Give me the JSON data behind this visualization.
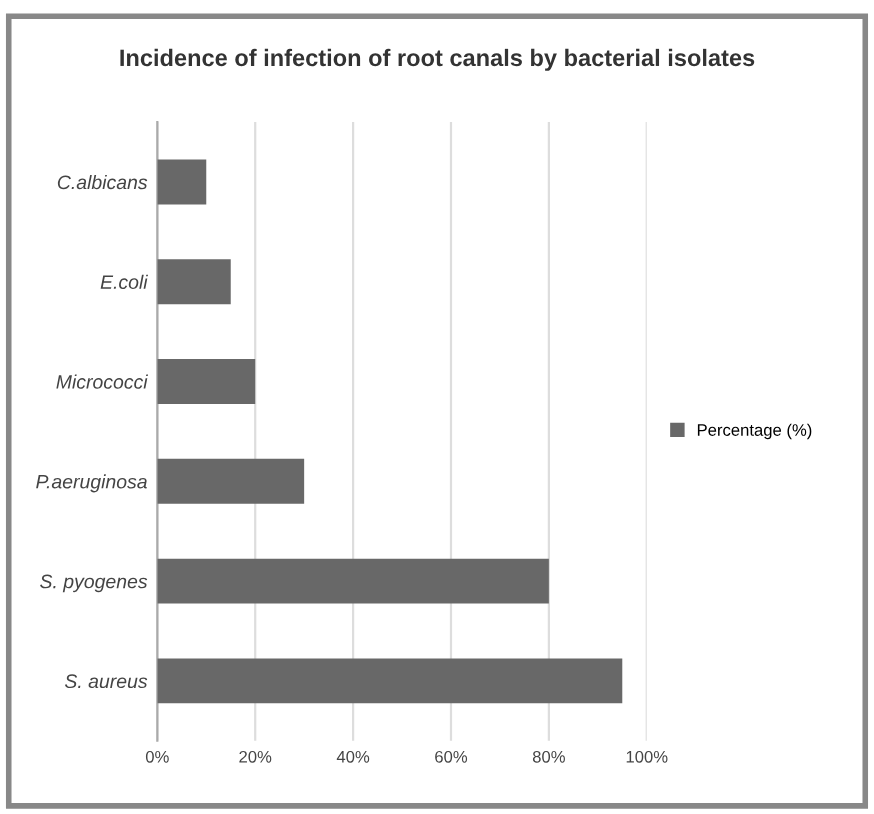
{
  "chart_data": {
    "type": "bar",
    "orientation": "horizontal",
    "title": "Incidence of infection of root canals by bacterial isolates",
    "categories": [
      "C.albicans",
      "E.coli",
      "Micrococci",
      "P.aeruginosa",
      "S. pyogenes",
      "S. aureus"
    ],
    "series": [
      {
        "name": "Percentage (%)",
        "color": "#686868",
        "values": [
          10,
          15,
          20,
          30,
          80,
          95
        ]
      }
    ],
    "xlim": [
      0,
      100
    ],
    "xticks": [
      {
        "value": 0,
        "label": "0%"
      },
      {
        "value": 20,
        "label": "20%"
      },
      {
        "value": 40,
        "label": "40%"
      },
      {
        "value": 60,
        "label": "60%"
      },
      {
        "value": 80,
        "label": "80%"
      },
      {
        "value": 100,
        "label": "100%"
      }
    ],
    "grid": "x",
    "legend": "right"
  }
}
